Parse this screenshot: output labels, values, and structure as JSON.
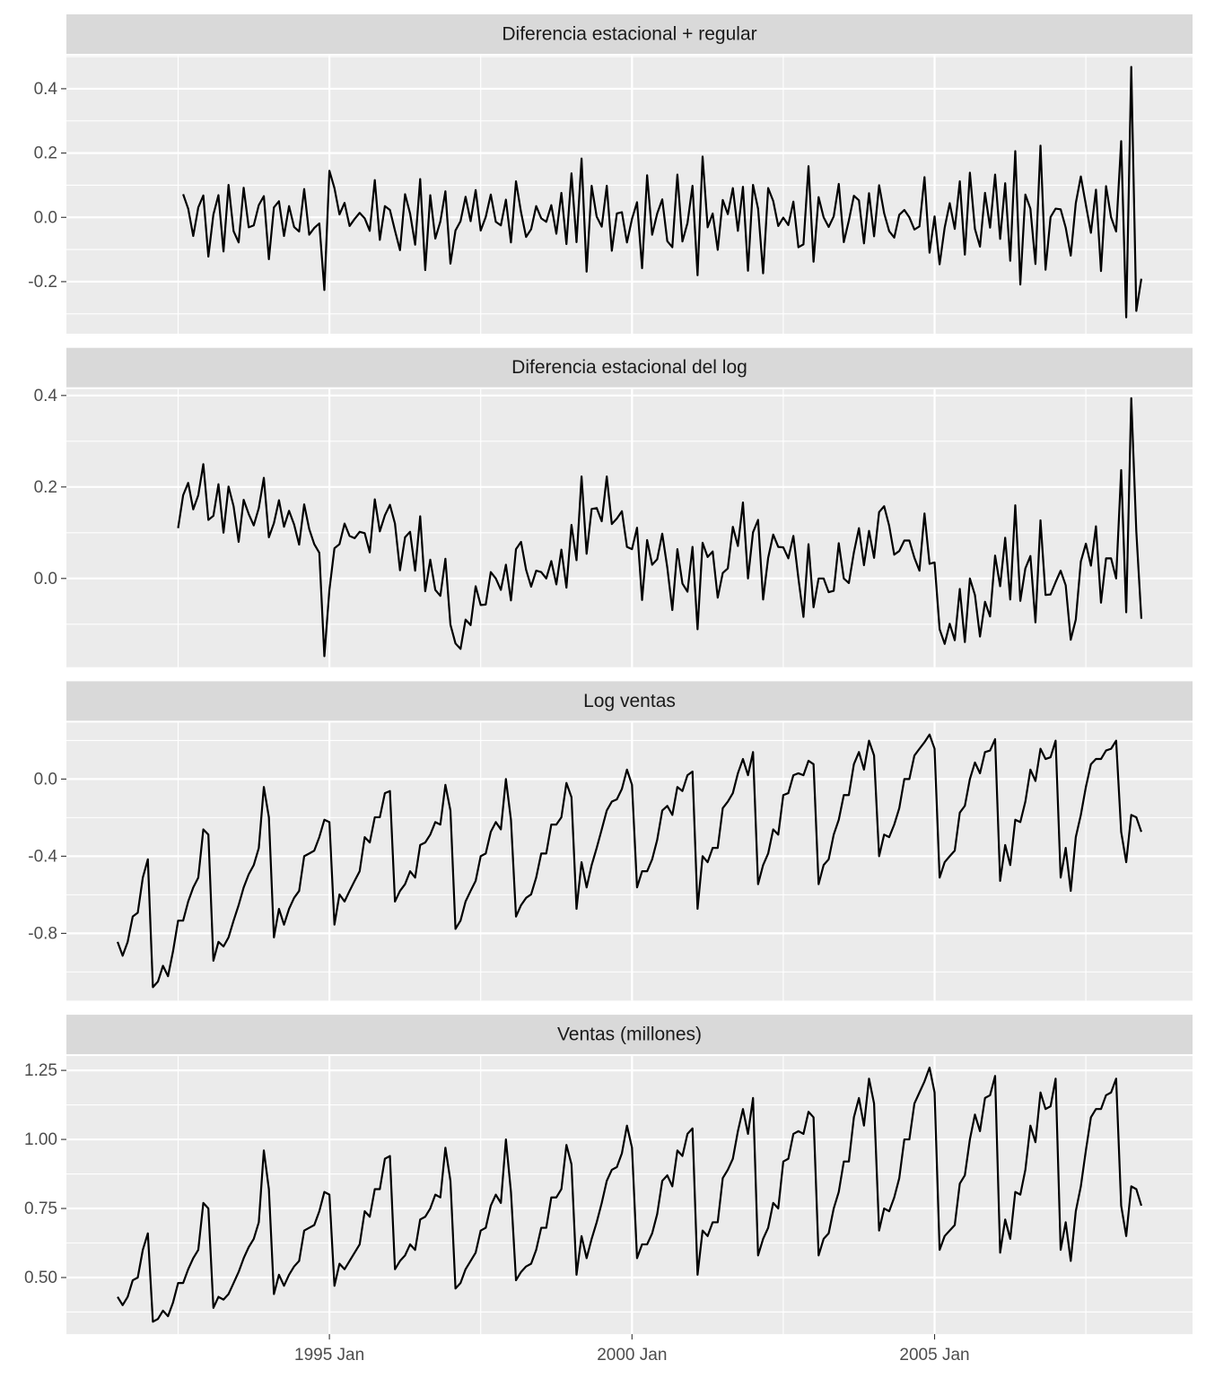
{
  "chart_data": {
    "type": "line",
    "x": [
      "1991 Jul",
      "1991 Aug",
      "1991 Sep",
      "1991 Oct",
      "1991 Nov",
      "1991 Dec",
      "1992 Jan",
      "1992 Feb",
      "1992 Mar",
      "1992 Apr",
      "1992 May",
      "1992 Jun",
      "1992 Jul",
      "1992 Aug",
      "1992 Sep",
      "1992 Oct",
      "1992 Nov",
      "1992 Dec",
      "1993 Jan",
      "1993 Feb",
      "1993 Mar",
      "1993 Apr",
      "1993 May",
      "1993 Jun",
      "1993 Jul",
      "1993 Aug",
      "1993 Sep",
      "1993 Oct",
      "1993 Nov",
      "1993 Dec",
      "1994 Jan",
      "1994 Feb",
      "1994 Mar",
      "1994 Apr",
      "1994 May",
      "1994 Jun",
      "1994 Jul",
      "1994 Aug",
      "1994 Sep",
      "1994 Oct",
      "1994 Nov",
      "1994 Dec",
      "1995 Jan",
      "1995 Feb",
      "1995 Mar",
      "1995 Apr",
      "1995 May",
      "1995 Jun",
      "1995 Jul",
      "1995 Aug",
      "1995 Sep",
      "1995 Oct",
      "1995 Nov",
      "1995 Dec",
      "1996 Jan",
      "1996 Feb",
      "1996 Mar",
      "1996 Apr",
      "1996 May",
      "1996 Jun",
      "1996 Jul",
      "1996 Aug",
      "1996 Sep",
      "1996 Oct",
      "1996 Nov",
      "1996 Dec",
      "1997 Jan",
      "1997 Feb",
      "1997 Mar",
      "1997 Apr",
      "1997 May",
      "1997 Jun",
      "1997 Jul",
      "1997 Aug",
      "1997 Sep",
      "1997 Oct",
      "1997 Nov",
      "1997 Dec",
      "1998 Jan",
      "1998 Feb",
      "1998 Mar",
      "1998 Apr",
      "1998 May",
      "1998 Jun",
      "1998 Jul",
      "1998 Aug",
      "1998 Sep",
      "1998 Oct",
      "1998 Nov",
      "1998 Dec",
      "1999 Jan",
      "1999 Feb",
      "1999 Mar",
      "1999 Apr",
      "1999 May",
      "1999 Jun",
      "1999 Jul",
      "1999 Aug",
      "1999 Sep",
      "1999 Oct",
      "1999 Nov",
      "1999 Dec",
      "2000 Jan",
      "2000 Feb",
      "2000 Mar",
      "2000 Apr",
      "2000 May",
      "2000 Jun",
      "2000 Jul",
      "2000 Aug",
      "2000 Sep",
      "2000 Oct",
      "2000 Nov",
      "2000 Dec",
      "2001 Jan",
      "2001 Feb",
      "2001 Mar",
      "2001 Apr",
      "2001 May",
      "2001 Jun",
      "2001 Jul",
      "2001 Aug",
      "2001 Sep",
      "2001 Oct",
      "2001 Nov",
      "2001 Dec",
      "2002 Jan",
      "2002 Feb",
      "2002 Mar",
      "2002 Apr",
      "2002 May",
      "2002 Jun",
      "2002 Jul",
      "2002 Aug",
      "2002 Sep",
      "2002 Oct",
      "2002 Nov",
      "2002 Dec",
      "2003 Jan",
      "2003 Feb",
      "2003 Mar",
      "2003 Apr",
      "2003 May",
      "2003 Jun",
      "2003 Jul",
      "2003 Aug",
      "2003 Sep",
      "2003 Oct",
      "2003 Nov",
      "2003 Dec",
      "2004 Jan",
      "2004 Feb",
      "2004 Mar",
      "2004 Apr",
      "2004 May",
      "2004 Jun",
      "2004 Jul",
      "2004 Aug",
      "2004 Sep",
      "2004 Oct",
      "2004 Nov",
      "2004 Dec",
      "2005 Jan",
      "2005 Feb",
      "2005 Mar",
      "2005 Apr",
      "2005 May",
      "2005 Jun",
      "2005 Jul",
      "2005 Aug",
      "2005 Sep",
      "2005 Oct",
      "2005 Nov",
      "2005 Dec",
      "2006 Jan",
      "2006 Feb",
      "2006 Mar",
      "2006 Apr",
      "2006 May",
      "2006 Jun",
      "2006 Jul",
      "2006 Aug",
      "2006 Sep",
      "2006 Oct",
      "2006 Nov",
      "2006 Dec",
      "2007 Jan",
      "2007 Feb",
      "2007 Mar",
      "2007 Apr",
      "2007 May",
      "2007 Jun",
      "2007 Jul",
      "2007 Aug",
      "2007 Sep",
      "2007 Oct",
      "2007 Nov",
      "2007 Dec",
      "2008 Jan",
      "2008 Feb",
      "2008 Mar",
      "2008 Apr",
      "2008 May",
      "2008 Jun"
    ],
    "xticks": [
      "1995 Jan",
      "2000 Jan",
      "2005 Jan"
    ],
    "grid": true,
    "series": [
      {
        "name": "Diferencia estacional + regular",
        "color": "#000000",
        "ylim": [
          -0.362,
          0.503
        ],
        "yticks": [
          -0.2,
          {
            "value": 0,
            "label": "0.0"
          },
          0.2,
          0.4
        ],
        "values": [
          null,
          null,
          null,
          null,
          null,
          null,
          null,
          null,
          null,
          null,
          null,
          null,
          null,
          0.072,
          0.027,
          -0.058,
          0.031,
          0.068,
          -0.122,
          0.009,
          0.069,
          -0.106,
          0.101,
          -0.043,
          -0.078,
          0.092,
          -0.031,
          -0.025,
          0.038,
          0.066,
          -0.13,
          0.031,
          0.05,
          -0.058,
          0.035,
          -0.03,
          -0.044,
          0.088,
          -0.054,
          -0.033,
          -0.019,
          -0.226,
          0.145,
          0.091,
          0.009,
          0.045,
          -0.027,
          -0.005,
          0.014,
          -0.003,
          -0.042,
          0.116,
          -0.07,
          0.035,
          0.023,
          -0.041,
          -0.102,
          0.072,
          0.012,
          -0.085,
          0.119,
          -0.164,
          0.069,
          -0.066,
          -0.013,
          0.081,
          -0.144,
          -0.041,
          -0.012,
          0.064,
          -0.012,
          0.085,
          -0.041,
          0.001,
          0.071,
          -0.014,
          -0.025,
          0.055,
          -0.078,
          0.112,
          0.016,
          -0.061,
          -0.037,
          0.035,
          -0.003,
          -0.014,
          0.038,
          -0.051,
          0.076,
          -0.083,
          0.137,
          -0.077,
          0.183,
          -0.169,
          0.098,
          0.002,
          -0.029,
          0.098,
          -0.104,
          0.012,
          0.016,
          -0.078,
          -0.005,
          0.047,
          -0.158,
          0.131,
          -0.054,
          0.012,
          0.056,
          -0.074,
          -0.093,
          0.133,
          -0.075,
          -0.018,
          0.098,
          -0.18,
          0.189,
          -0.031,
          0.012,
          -0.101,
          0.054,
          0.01,
          0.091,
          -0.042,
          0.095,
          -0.166,
          0.101,
          0.027,
          -0.174,
          0.091,
          0.051,
          -0.027,
          -0.001,
          -0.024,
          0.049,
          -0.093,
          -0.084,
          0.159,
          -0.138,
          0.063,
          0.0,
          -0.03,
          0.003,
          0.104,
          -0.077,
          -0.01,
          0.067,
          0.053,
          -0.081,
          0.075,
          -0.059,
          0.1,
          0.013,
          -0.043,
          -0.063,
          0.008,
          0.023,
          0.0,
          -0.038,
          -0.028,
          0.125,
          -0.11,
          0.003,
          -0.146,
          -0.032,
          0.044,
          -0.036,
          0.112,
          -0.116,
          0.139,
          -0.036,
          -0.091,
          0.076,
          -0.032,
          0.133,
          -0.067,
          0.106,
          -0.135,
          0.206,
          -0.209,
          0.071,
          0.027,
          -0.145,
          0.223,
          -0.163,
          0.001,
          0.027,
          0.025,
          -0.032,
          -0.119,
          0.044,
          0.127,
          0.039,
          -0.048,
          0.086,
          -0.167,
          0.097,
          0.0,
          -0.044,
          0.237,
          -0.311,
          0.468,
          -0.291,
          -0.191
        ]
      },
      {
        "name": "Diferencia estacional del log",
        "color": "#000000",
        "ylim": [
          -0.194,
          0.414
        ],
        "yticks": [
          {
            "value": 0,
            "label": "0.0"
          },
          0.2,
          0.4
        ],
        "values": [
          null,
          null,
          null,
          null,
          null,
          null,
          null,
          null,
          null,
          null,
          null,
          null,
          0.11,
          0.182,
          0.209,
          0.151,
          0.182,
          0.25,
          0.128,
          0.137,
          0.206,
          0.1,
          0.201,
          0.158,
          0.08,
          0.172,
          0.141,
          0.116,
          0.154,
          0.22,
          0.09,
          0.121,
          0.171,
          0.113,
          0.148,
          0.118,
          0.074,
          0.162,
          0.108,
          0.075,
          0.056,
          -0.17,
          -0.025,
          0.066,
          0.075,
          0.12,
          0.093,
          0.088,
          0.102,
          0.099,
          0.057,
          0.173,
          0.103,
          0.138,
          0.161,
          0.12,
          0.018,
          0.09,
          0.102,
          0.017,
          0.136,
          -0.028,
          0.041,
          -0.025,
          -0.038,
          0.043,
          -0.101,
          -0.142,
          -0.154,
          -0.09,
          -0.102,
          -0.017,
          -0.058,
          -0.057,
          0.014,
          0.0,
          -0.025,
          0.03,
          -0.048,
          0.064,
          0.08,
          0.019,
          -0.018,
          0.017,
          0.014,
          0.0,
          0.038,
          -0.013,
          0.063,
          -0.02,
          0.117,
          0.04,
          0.223,
          0.054,
          0.152,
          0.154,
          0.125,
          0.223,
          0.119,
          0.131,
          0.147,
          0.069,
          0.064,
          0.111,
          -0.047,
          0.084,
          0.03,
          0.042,
          0.098,
          0.024,
          -0.069,
          0.064,
          -0.011,
          -0.029,
          0.069,
          -0.111,
          0.078,
          0.047,
          0.059,
          -0.042,
          0.012,
          0.022,
          0.113,
          0.071,
          0.166,
          0.0,
          0.101,
          0.128,
          -0.046,
          0.045,
          0.096,
          0.069,
          0.068,
          0.044,
          0.093,
          0.0,
          -0.084,
          0.075,
          -0.063,
          0.0,
          0.0,
          -0.03,
          -0.027,
          0.077,
          0.0,
          -0.01,
          0.057,
          0.11,
          0.029,
          0.104,
          0.045,
          0.145,
          0.158,
          0.115,
          0.052,
          0.06,
          0.083,
          0.083,
          0.045,
          0.017,
          0.142,
          0.032,
          0.035,
          -0.111,
          -0.143,
          -0.099,
          -0.135,
          -0.023,
          -0.139,
          0.0,
          -0.036,
          -0.127,
          -0.051,
          -0.083,
          0.05,
          -0.017,
          0.089,
          -0.046,
          0.16,
          -0.049,
          0.022,
          0.049,
          -0.096,
          0.127,
          -0.036,
          -0.035,
          -0.008,
          0.017,
          -0.015,
          -0.134,
          -0.09,
          0.037,
          0.076,
          0.028,
          0.114,
          -0.053,
          0.044,
          0.044,
          0.0,
          0.237,
          -0.074,
          0.394,
          0.103,
          -0.088
        ]
      },
      {
        "name": "Log ventas",
        "color": "#000000",
        "ylim": [
          -1.149,
          0.293
        ],
        "yticks": [
          -0.8,
          -0.4,
          {
            "value": 0,
            "label": "0.0"
          }
        ],
        "values": [
          -0.844,
          -0.916,
          -0.844,
          -0.713,
          -0.693,
          -0.511,
          -0.416,
          -1.079,
          -1.05,
          -0.968,
          -1.022,
          -0.892,
          -0.734,
          -0.734,
          -0.635,
          -0.562,
          -0.511,
          -0.261,
          -0.288,
          -0.942,
          -0.844,
          -0.868,
          -0.821,
          -0.734,
          -0.654,
          -0.562,
          -0.494,
          -0.446,
          -0.357,
          -0.041,
          -0.198,
          -0.821,
          -0.673,
          -0.755,
          -0.673,
          -0.616,
          -0.58,
          -0.4,
          -0.386,
          -0.371,
          -0.301,
          -0.211,
          -0.223,
          -0.755,
          -0.598,
          -0.635,
          -0.58,
          -0.528,
          -0.478,
          -0.301,
          -0.329,
          -0.198,
          -0.198,
          -0.073,
          -0.062,
          -0.635,
          -0.58,
          -0.545,
          -0.478,
          -0.511,
          -0.342,
          -0.329,
          -0.288,
          -0.223,
          -0.236,
          -0.03,
          -0.163,
          -0.777,
          -0.734,
          -0.635,
          -0.58,
          -0.528,
          -0.4,
          -0.386,
          -0.274,
          -0.223,
          -0.261,
          0.0,
          -0.211,
          -0.713,
          -0.654,
          -0.616,
          -0.598,
          -0.511,
          -0.386,
          -0.386,
          -0.236,
          -0.236,
          -0.198,
          -0.02,
          -0.094,
          -0.673,
          -0.431,
          -0.562,
          -0.446,
          -0.357,
          -0.261,
          -0.163,
          -0.117,
          -0.105,
          -0.051,
          0.049,
          -0.03,
          -0.562,
          -0.478,
          -0.478,
          -0.416,
          -0.315,
          -0.163,
          -0.139,
          -0.186,
          -0.041,
          -0.062,
          0.02,
          0.039,
          -0.673,
          -0.4,
          -0.431,
          -0.357,
          -0.357,
          -0.151,
          -0.117,
          -0.073,
          0.03,
          0.104,
          0.02,
          0.14,
          -0.545,
          -0.446,
          -0.386,
          -0.261,
          -0.288,
          -0.083,
          -0.073,
          0.02,
          0.03,
          0.02,
          0.095,
          0.077,
          -0.545,
          -0.446,
          -0.416,
          -0.288,
          -0.211,
          -0.083,
          -0.083,
          0.077,
          0.14,
          0.049,
          0.199,
          0.122,
          -0.4,
          -0.288,
          -0.301,
          -0.236,
          -0.151,
          0.0,
          0.0,
          0.122,
          0.157,
          0.191,
          0.231,
          0.157,
          -0.511,
          -0.431,
          -0.4,
          -0.371,
          -0.174,
          -0.139,
          0.0,
          0.086,
          0.03,
          0.14,
          0.148,
          0.207,
          -0.528,
          -0.342,
          -0.446,
          -0.211,
          -0.223,
          -0.117,
          0.049,
          -0.01,
          0.157,
          0.104,
          0.113,
          0.199,
          -0.511,
          -0.357,
          -0.58,
          -0.301,
          -0.186,
          -0.041,
          0.077,
          0.104,
          0.104,
          0.148,
          0.157,
          0.199,
          -0.274,
          -0.431,
          -0.186,
          -0.198,
          -0.274
        ]
      },
      {
        "name": "Ventas (millones)",
        "color": "#000000",
        "ylim": [
          0.295,
          1.302
        ],
        "yticks": [
          {
            "value": 0.5,
            "label": "0.50"
          },
          0.75,
          {
            "value": 1,
            "label": "1.00"
          },
          1.25
        ],
        "values": [
          0.43,
          0.4,
          0.43,
          0.49,
          0.5,
          0.6,
          0.66,
          0.34,
          0.35,
          0.38,
          0.36,
          0.41,
          0.48,
          0.48,
          0.53,
          0.57,
          0.6,
          0.77,
          0.75,
          0.39,
          0.43,
          0.42,
          0.44,
          0.48,
          0.52,
          0.57,
          0.61,
          0.64,
          0.7,
          0.96,
          0.82,
          0.44,
          0.51,
          0.47,
          0.51,
          0.54,
          0.56,
          0.67,
          0.68,
          0.69,
          0.74,
          0.81,
          0.8,
          0.47,
          0.55,
          0.53,
          0.56,
          0.59,
          0.62,
          0.74,
          0.72,
          0.82,
          0.82,
          0.93,
          0.94,
          0.53,
          0.56,
          0.58,
          0.62,
          0.6,
          0.71,
          0.72,
          0.75,
          0.8,
          0.79,
          0.97,
          0.85,
          0.46,
          0.48,
          0.53,
          0.56,
          0.59,
          0.67,
          0.68,
          0.76,
          0.8,
          0.77,
          1.0,
          0.81,
          0.49,
          0.52,
          0.54,
          0.55,
          0.6,
          0.68,
          0.68,
          0.79,
          0.79,
          0.82,
          0.98,
          0.91,
          0.51,
          0.65,
          0.57,
          0.64,
          0.7,
          0.77,
          0.85,
          0.89,
          0.9,
          0.95,
          1.05,
          0.97,
          0.57,
          0.62,
          0.62,
          0.66,
          0.73,
          0.85,
          0.87,
          0.83,
          0.96,
          0.94,
          1.02,
          1.04,
          0.51,
          0.67,
          0.65,
          0.7,
          0.7,
          0.86,
          0.89,
          0.93,
          1.03,
          1.11,
          1.02,
          1.15,
          0.58,
          0.64,
          0.68,
          0.77,
          0.75,
          0.92,
          0.93,
          1.02,
          1.03,
          1.02,
          1.1,
          1.08,
          0.58,
          0.64,
          0.66,
          0.75,
          0.81,
          0.92,
          0.92,
          1.08,
          1.15,
          1.05,
          1.22,
          1.13,
          0.67,
          0.75,
          0.74,
          0.79,
          0.86,
          1.0,
          1.0,
          1.13,
          1.17,
          1.21,
          1.26,
          1.17,
          0.6,
          0.65,
          0.67,
          0.69,
          0.84,
          0.87,
          1.0,
          1.09,
          1.03,
          1.15,
          1.16,
          1.23,
          0.59,
          0.71,
          0.64,
          0.81,
          0.8,
          0.89,
          1.05,
          0.99,
          1.17,
          1.11,
          1.12,
          1.22,
          0.6,
          0.7,
          0.56,
          0.74,
          0.83,
          0.96,
          1.08,
          1.11,
          1.11,
          1.16,
          1.17,
          1.22,
          0.76,
          0.65,
          0.83,
          0.82,
          0.76
        ]
      }
    ]
  }
}
